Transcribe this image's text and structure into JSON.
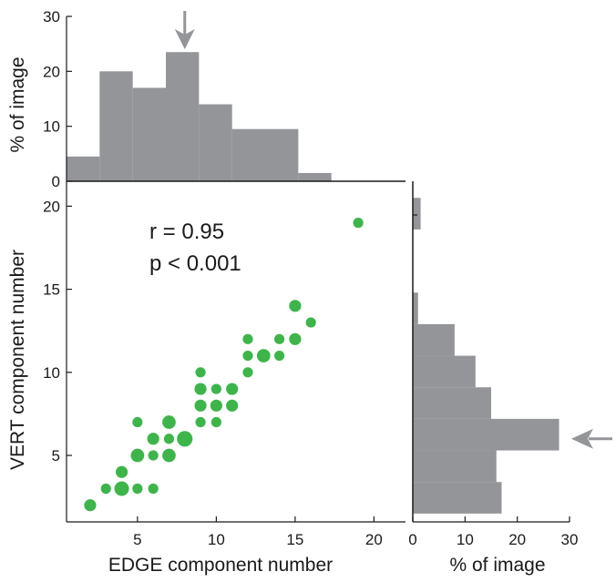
{
  "colors": {
    "bar": "#939598",
    "point": "#3db54a",
    "arrow": "#939598",
    "axis": "#1a1a1a"
  },
  "chart_data": [
    {
      "id": "scatter",
      "type": "scatter",
      "xlabel": "EDGE component number",
      "ylabel": "VERT component number",
      "xlim": [
        0.5,
        22
      ],
      "ylim": [
        1,
        21.5
      ],
      "xticks": [
        5,
        10,
        15,
        20
      ],
      "yticks": [
        5,
        10,
        15,
        20
      ],
      "annotations": [
        "r = 0.95",
        "p < 0.001"
      ],
      "points": [
        {
          "x": 2,
          "y": 2,
          "count": 2
        },
        {
          "x": 3,
          "y": 3,
          "count": 1
        },
        {
          "x": 4,
          "y": 3,
          "count": 4
        },
        {
          "x": 4,
          "y": 4,
          "count": 2
        },
        {
          "x": 5,
          "y": 3,
          "count": 1
        },
        {
          "x": 5,
          "y": 5,
          "count": 3
        },
        {
          "x": 5,
          "y": 7,
          "count": 1
        },
        {
          "x": 6,
          "y": 3,
          "count": 1
        },
        {
          "x": 6,
          "y": 5,
          "count": 1
        },
        {
          "x": 6,
          "y": 6,
          "count": 2
        },
        {
          "x": 7,
          "y": 5,
          "count": 3
        },
        {
          "x": 7,
          "y": 6,
          "count": 1
        },
        {
          "x": 7,
          "y": 7,
          "count": 3
        },
        {
          "x": 8,
          "y": 6,
          "count": 5
        },
        {
          "x": 9,
          "y": 7,
          "count": 1
        },
        {
          "x": 9,
          "y": 8,
          "count": 2
        },
        {
          "x": 9,
          "y": 9,
          "count": 2
        },
        {
          "x": 9,
          "y": 10,
          "count": 1
        },
        {
          "x": 10,
          "y": 7,
          "count": 1
        },
        {
          "x": 10,
          "y": 8,
          "count": 2
        },
        {
          "x": 10,
          "y": 9,
          "count": 1
        },
        {
          "x": 11,
          "y": 8,
          "count": 2
        },
        {
          "x": 11,
          "y": 9,
          "count": 2
        },
        {
          "x": 12,
          "y": 10,
          "count": 1
        },
        {
          "x": 12,
          "y": 11,
          "count": 1
        },
        {
          "x": 12,
          "y": 12,
          "count": 1
        },
        {
          "x": 13,
          "y": 11,
          "count": 3
        },
        {
          "x": 14,
          "y": 11,
          "count": 1
        },
        {
          "x": 14,
          "y": 12,
          "count": 1
        },
        {
          "x": 15,
          "y": 12,
          "count": 2
        },
        {
          "x": 15,
          "y": 14,
          "count": 2
        },
        {
          "x": 16,
          "y": 13,
          "count": 1
        },
        {
          "x": 19,
          "y": 19,
          "count": 1
        }
      ]
    },
    {
      "id": "top-histogram",
      "type": "bar",
      "orientation": "vertical",
      "ylabel": "% of image",
      "ylim": [
        0,
        30
      ],
      "yticks": [
        0,
        10,
        20,
        30
      ],
      "bin_edges": [
        0.5,
        2.6,
        4.7,
        6.8,
        8.9,
        11.0,
        13.1,
        15.2,
        17.3,
        19.4
      ],
      "values": [
        4.5,
        20,
        17,
        23.5,
        14,
        9.5,
        9.5,
        1.5,
        0
      ],
      "marker_value": 8
    },
    {
      "id": "right-histogram",
      "type": "bar",
      "orientation": "horizontal",
      "xlabel": "% of image",
      "xlim": [
        0,
        30
      ],
      "xticks": [
        0,
        10,
        20,
        30
      ],
      "bin_edges": [
        1.5,
        3.4,
        5.3,
        7.2,
        9.1,
        11.0,
        12.9,
        14.8,
        16.7,
        18.6,
        20.5
      ],
      "values": [
        17,
        16,
        28,
        15,
        12,
        8,
        1,
        0,
        0,
        1.5
      ],
      "marker_value": 6
    }
  ]
}
